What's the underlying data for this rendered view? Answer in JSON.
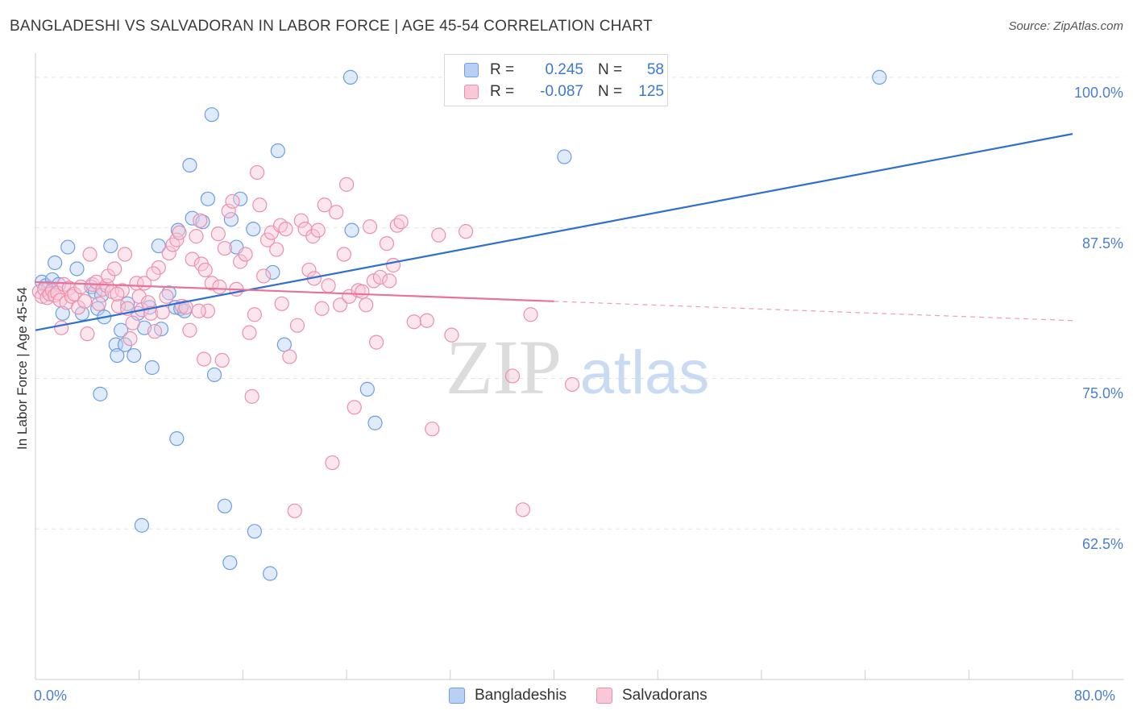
{
  "title": "BANGLADESHI VS SALVADORAN IN LABOR FORCE | AGE 45-54 CORRELATION CHART",
  "source": "Source: ZipAtlas.com",
  "watermark": {
    "zip": "ZIP",
    "atlas": "atlas"
  },
  "legend": {
    "rows": [
      {
        "r_label": "R =",
        "r_value": "0.245",
        "n_label": "N =",
        "n_value": "58",
        "color": "#a9c5f0",
        "border": "#6d9ee3"
      },
      {
        "r_label": "R =",
        "r_value": "-0.087",
        "n_label": "N =",
        "n_value": "125",
        "color": "#f8bfd0",
        "border": "#ec8fac"
      }
    ]
  },
  "bottom_legend": [
    {
      "label": "Bangladeshis",
      "color": "#a9c5f0",
      "border": "#6d9ee3"
    },
    {
      "label": "Salvadorans",
      "color": "#f8bfd0",
      "border": "#ec8fac"
    }
  ],
  "chart_data": {
    "type": "scatter",
    "title": "BANGLADESHI VS SALVADORAN IN LABOR FORCE | AGE 45-54 CORRELATION CHART",
    "xlabel": "",
    "ylabel": "In Labor Force | Age 45-54",
    "xlim": [
      0,
      80
    ],
    "ylim": [
      50,
      102
    ],
    "x_tick_labels": [
      "0.0%",
      "80.0%"
    ],
    "y_ticks": [
      62.5,
      75.0,
      87.5,
      100.0
    ],
    "y_tick_labels": [
      "62.5%",
      "75.0%",
      "87.5%",
      "100.0%"
    ],
    "grid": true,
    "series": [
      {
        "name": "Bangladeshis",
        "color": "#6d9ee3",
        "fill": "#b8d0f4",
        "trend": {
          "x": [
            0,
            80
          ],
          "y": [
            79.0,
            95.3
          ],
          "color": "#2f6fd0"
        },
        "points": [
          [
            0.5,
            83.0
          ],
          [
            0.8,
            82.7
          ],
          [
            1.0,
            82.5
          ],
          [
            1.3,
            83.2
          ],
          [
            1.5,
            84.6
          ],
          [
            1.8,
            82.8
          ],
          [
            2.1,
            80.4
          ],
          [
            2.5,
            85.9
          ],
          [
            3.2,
            84.1
          ],
          [
            3.6,
            80.4
          ],
          [
            4.3,
            82.6
          ],
          [
            4.6,
            82.2
          ],
          [
            4.8,
            80.8
          ],
          [
            5.1,
            81.9
          ],
          [
            5.3,
            80.1
          ],
          [
            5.8,
            86.0
          ],
          [
            6.2,
            77.8
          ],
          [
            6.3,
            76.9
          ],
          [
            6.6,
            79.0
          ],
          [
            6.9,
            77.8
          ],
          [
            7.1,
            81.2
          ],
          [
            7.6,
            76.9
          ],
          [
            7.9,
            80.4
          ],
          [
            8.2,
            62.8
          ],
          [
            8.4,
            79.2
          ],
          [
            9.0,
            75.9
          ],
          [
            9.5,
            86.0
          ],
          [
            9.7,
            79.1
          ],
          [
            10.3,
            82.1
          ],
          [
            10.8,
            80.9
          ],
          [
            10.9,
            70.0
          ],
          [
            11.0,
            87.3
          ],
          [
            11.2,
            80.8
          ],
          [
            11.5,
            80.6
          ],
          [
            11.9,
            92.7
          ],
          [
            12.1,
            88.3
          ],
          [
            12.9,
            88.0
          ],
          [
            13.3,
            89.9
          ],
          [
            13.6,
            96.9
          ],
          [
            13.8,
            75.3
          ],
          [
            14.6,
            64.4
          ],
          [
            15.0,
            59.7
          ],
          [
            15.1,
            88.2
          ],
          [
            15.5,
            85.9
          ],
          [
            15.8,
            89.9
          ],
          [
            16.8,
            87.4
          ],
          [
            16.9,
            62.3
          ],
          [
            18.1,
            58.8
          ],
          [
            18.3,
            83.8
          ],
          [
            18.7,
            93.9
          ],
          [
            19.2,
            77.8
          ],
          [
            24.3,
            100.0
          ],
          [
            24.4,
            87.3
          ],
          [
            25.6,
            74.1
          ],
          [
            26.2,
            71.3
          ],
          [
            40.8,
            93.4
          ],
          [
            65.1,
            100.0
          ],
          [
            5.0,
            73.7
          ],
          [
            8.8,
            80.9
          ]
        ]
      },
      {
        "name": "Salvadorans",
        "color": "#ec8fac",
        "fill": "#f9c7d6",
        "trend": {
          "x": [
            0,
            40
          ],
          "y": [
            83.0,
            81.4
          ],
          "dashed_to": [
            80,
            79.8
          ],
          "color": "#e8729a"
        },
        "points": [
          [
            0.3,
            82.2
          ],
          [
            0.5,
            81.8
          ],
          [
            0.7,
            82.4
          ],
          [
            0.9,
            81.7
          ],
          [
            1.1,
            82.0
          ],
          [
            1.3,
            82.3
          ],
          [
            1.5,
            81.9
          ],
          [
            1.7,
            82.1
          ],
          [
            1.9,
            81.5
          ],
          [
            2.2,
            82.8
          ],
          [
            2.4,
            81.3
          ],
          [
            2.6,
            82.5
          ],
          [
            2.8,
            81.8
          ],
          [
            3.0,
            82.0
          ],
          [
            3.3,
            80.9
          ],
          [
            3.5,
            82.6
          ],
          [
            3.8,
            81.4
          ],
          [
            4.0,
            78.7
          ],
          [
            4.2,
            85.3
          ],
          [
            4.4,
            82.8
          ],
          [
            4.7,
            83.0
          ],
          [
            4.9,
            81.2
          ],
          [
            5.2,
            82.4
          ],
          [
            5.5,
            82.7
          ],
          [
            5.6,
            83.5
          ],
          [
            5.9,
            82.2
          ],
          [
            6.1,
            84.1
          ],
          [
            6.4,
            81.0
          ],
          [
            6.7,
            82.3
          ],
          [
            6.9,
            85.3
          ],
          [
            7.1,
            80.8
          ],
          [
            7.3,
            78.3
          ],
          [
            7.5,
            79.6
          ],
          [
            7.8,
            82.9
          ],
          [
            8.0,
            81.8
          ],
          [
            8.2,
            80.7
          ],
          [
            8.4,
            82.9
          ],
          [
            8.7,
            81.3
          ],
          [
            8.9,
            80.4
          ],
          [
            9.2,
            78.9
          ],
          [
            9.5,
            84.2
          ],
          [
            9.8,
            80.5
          ],
          [
            10.1,
            81.8
          ],
          [
            10.3,
            85.4
          ],
          [
            10.6,
            86.1
          ],
          [
            10.9,
            86.5
          ],
          [
            11.3,
            81.0
          ],
          [
            11.6,
            80.9
          ],
          [
            11.9,
            79.0
          ],
          [
            12.1,
            84.9
          ],
          [
            12.4,
            86.8
          ],
          [
            12.7,
            88.1
          ],
          [
            12.8,
            84.5
          ],
          [
            13.0,
            76.6
          ],
          [
            13.1,
            84.0
          ],
          [
            13.3,
            80.6
          ],
          [
            13.6,
            82.9
          ],
          [
            14.1,
            87.0
          ],
          [
            14.4,
            76.5
          ],
          [
            14.6,
            85.8
          ],
          [
            14.9,
            88.9
          ],
          [
            15.2,
            89.7
          ],
          [
            15.5,
            82.4
          ],
          [
            15.8,
            84.7
          ],
          [
            16.2,
            85.3
          ],
          [
            16.5,
            78.8
          ],
          [
            16.7,
            73.5
          ],
          [
            16.9,
            80.3
          ],
          [
            17.1,
            92.1
          ],
          [
            17.3,
            89.4
          ],
          [
            17.6,
            83.5
          ],
          [
            17.9,
            86.5
          ],
          [
            18.2,
            87.1
          ],
          [
            18.6,
            85.7
          ],
          [
            18.9,
            87.7
          ],
          [
            19.3,
            87.4
          ],
          [
            19.6,
            76.8
          ],
          [
            20.0,
            64.0
          ],
          [
            20.2,
            79.4
          ],
          [
            20.5,
            88.1
          ],
          [
            20.8,
            87.4
          ],
          [
            21.1,
            84.0
          ],
          [
            21.4,
            86.8
          ],
          [
            21.8,
            87.3
          ],
          [
            22.1,
            80.8
          ],
          [
            22.3,
            89.4
          ],
          [
            22.6,
            82.7
          ],
          [
            22.9,
            68.0
          ],
          [
            23.2,
            88.8
          ],
          [
            23.5,
            81.1
          ],
          [
            23.8,
            85.3
          ],
          [
            24.0,
            91.1
          ],
          [
            24.2,
            81.8
          ],
          [
            24.6,
            72.6
          ],
          [
            24.9,
            82.3
          ],
          [
            25.2,
            82.2
          ],
          [
            25.5,
            81.1
          ],
          [
            25.8,
            87.6
          ],
          [
            26.1,
            83.1
          ],
          [
            26.3,
            78.0
          ],
          [
            26.6,
            83.4
          ],
          [
            27.1,
            86.2
          ],
          [
            27.3,
            83.1
          ],
          [
            27.6,
            84.4
          ],
          [
            27.9,
            87.7
          ],
          [
            28.2,
            88.0
          ],
          [
            29.2,
            79.7
          ],
          [
            30.2,
            79.8
          ],
          [
            30.6,
            70.8
          ],
          [
            31.1,
            86.9
          ],
          [
            32.1,
            78.6
          ],
          [
            33.2,
            87.2
          ],
          [
            36.8,
            75.2
          ],
          [
            37.6,
            64.1
          ],
          [
            38.2,
            80.3
          ],
          [
            41.4,
            74.5
          ],
          [
            14.2,
            82.6
          ],
          [
            19.0,
            81.2
          ],
          [
            21.5,
            83.3
          ],
          [
            12.6,
            80.6
          ],
          [
            6.3,
            82.0
          ],
          [
            2.0,
            79.2
          ],
          [
            9.1,
            83.7
          ],
          [
            11.1,
            87.1
          ]
        ]
      }
    ]
  }
}
